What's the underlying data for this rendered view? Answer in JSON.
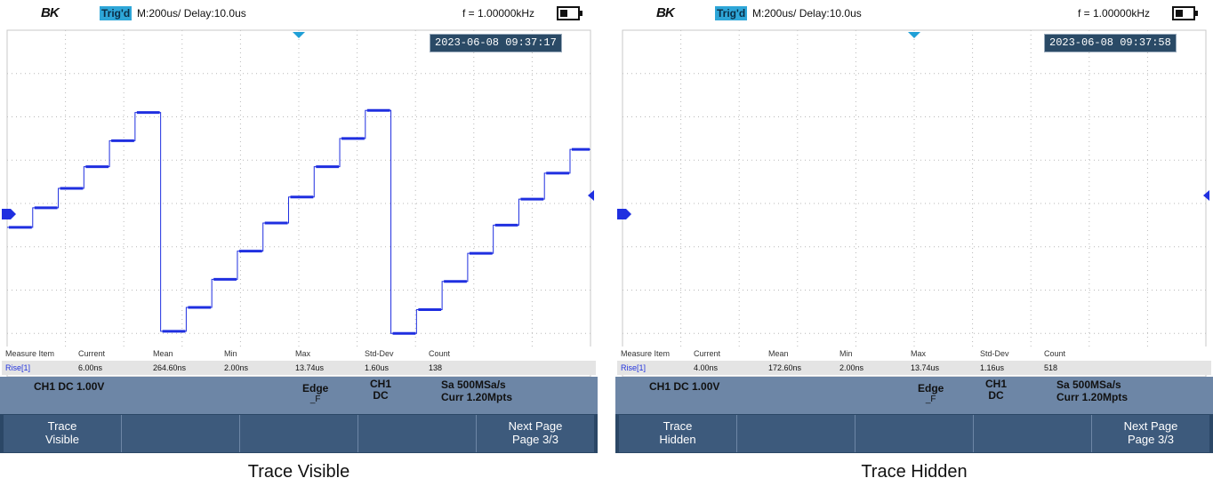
{
  "colors": {
    "trace": "#1f2fe0",
    "trig_badge": "#2ea6d8",
    "timestamp_bg": "#2a4a66",
    "status_bar": "#6d86a6",
    "softkey_bg": "#3d5a7c",
    "grid_dot": "#b8b8b8",
    "marker": "#1f9fd6"
  },
  "panels": [
    {
      "logo": "BK",
      "trig_status": "Trig'd",
      "timebase": "M:200us/ Delay:10.0us",
      "frequency": "f = 1.00000kHz",
      "timestamp": "2023-06-08 09:37:17",
      "trace_visible": true,
      "measure": {
        "headers": [
          "Measure Item",
          "Current",
          "Mean",
          "Min",
          "Max",
          "Std-Dev",
          "Count"
        ],
        "values": [
          "Rise[1]",
          "6.00ns",
          "264.60ns",
          "2.00ns",
          "13.74us",
          "1.60us",
          "138"
        ]
      },
      "status": {
        "channel": "CH1 DC 1.00V",
        "trigger_type": "Edge",
        "trigger_slope": "_F",
        "trigger_source": "CH1",
        "trigger_coupling": "DC",
        "sample_rate": "Sa 500MSa/s",
        "memory": "Curr 1.20Mpts"
      },
      "softkeys": {
        "key1_line1": "Trace",
        "key1_line2": "Visible",
        "next_line1": "Next Page",
        "next_line2": "Page 3/3"
      },
      "caption": "Trace Visible"
    },
    {
      "logo": "BK",
      "trig_status": "Trig'd",
      "timebase": "M:200us/ Delay:10.0us",
      "frequency": "f = 1.00000kHz",
      "timestamp": "2023-06-08 09:37:58",
      "trace_visible": false,
      "measure": {
        "headers": [
          "Measure Item",
          "Current",
          "Mean",
          "Min",
          "Max",
          "Std-Dev",
          "Count"
        ],
        "values": [
          "Rise[1]",
          "4.00ns",
          "172.60ns",
          "2.00ns",
          "13.74us",
          "1.16us",
          "518"
        ]
      },
      "status": {
        "channel": "CH1 DC 1.00V",
        "trigger_type": "Edge",
        "trigger_slope": "_F",
        "trigger_source": "CH1",
        "trigger_coupling": "DC",
        "sample_rate": "Sa 500MSa/s",
        "memory": "Curr 1.20Mpts"
      },
      "softkeys": {
        "key1_line1": "Trace",
        "key1_line2": "Hidden",
        "next_line1": "Next Page",
        "next_line2": "Page 3/3"
      },
      "caption": "Trace Hidden"
    }
  ],
  "waveform": {
    "description_units": "staircase levels in divisions above center",
    "steps": [
      -0.55,
      -0.1,
      0.35,
      0.85,
      1.45,
      2.1,
      -2.95,
      -2.4,
      -1.75,
      -1.1,
      -0.45,
      0.15,
      0.85,
      1.5,
      2.15,
      -3.0,
      -2.45,
      -1.8,
      -1.15,
      -0.5,
      0.1,
      0.7,
      1.25
    ]
  }
}
